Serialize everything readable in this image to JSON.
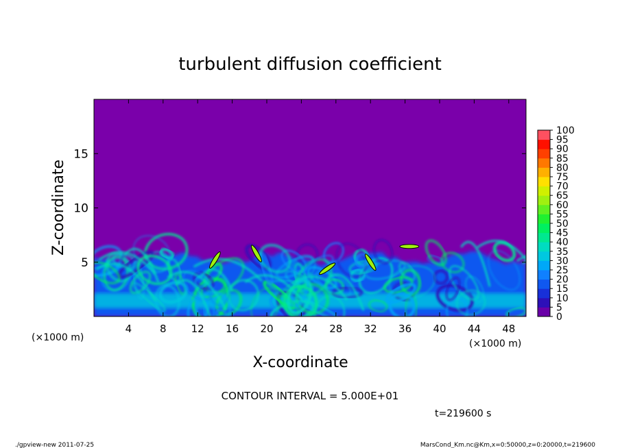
{
  "chart_data": {
    "type": "heatmap",
    "title": "turbulent diffusion coefficient",
    "xlabel": "X-coordinate",
    "ylabel": "Z-coordinate",
    "x_unit_left": "(×1000 m)",
    "x_unit_right": "(×1000 m)",
    "xlim": [
      0,
      50
    ],
    "ylim": [
      0,
      20
    ],
    "xticks": [
      4,
      8,
      12,
      16,
      20,
      24,
      28,
      32,
      36,
      40,
      44,
      48
    ],
    "yticks": [
      5,
      10,
      15
    ],
    "colorbar_levels": [
      0,
      5,
      10,
      15,
      20,
      25,
      30,
      35,
      40,
      45,
      50,
      55,
      60,
      65,
      70,
      75,
      80,
      85,
      90,
      95,
      100
    ],
    "colorbar_colors": [
      "#6a00a8",
      "#2d10b8",
      "#1830d8",
      "#1058f0",
      "#1080ff",
      "#00a8f8",
      "#00c8e0",
      "#00dcc0",
      "#00e890",
      "#00f060",
      "#20f030",
      "#60f020",
      "#a0f010",
      "#d0f000",
      "#ffe000",
      "#ffb000",
      "#ff7800",
      "#ff4000",
      "#ff1000",
      "#ff5060"
    ],
    "background_value": 0,
    "background_color": "#7a00aa",
    "contour_interval": "CONTOUR INTERVAL = 5.000E+01",
    "time": "t=219600 s",
    "turbulent_layer_top_km": 6.5,
    "peak_value": 60
  },
  "footer": {
    "left": "./gpview-new   2011-07-25",
    "right": "MarsCond_Km.nc@Km,x=0:50000,z=0:20000,t=219600"
  }
}
